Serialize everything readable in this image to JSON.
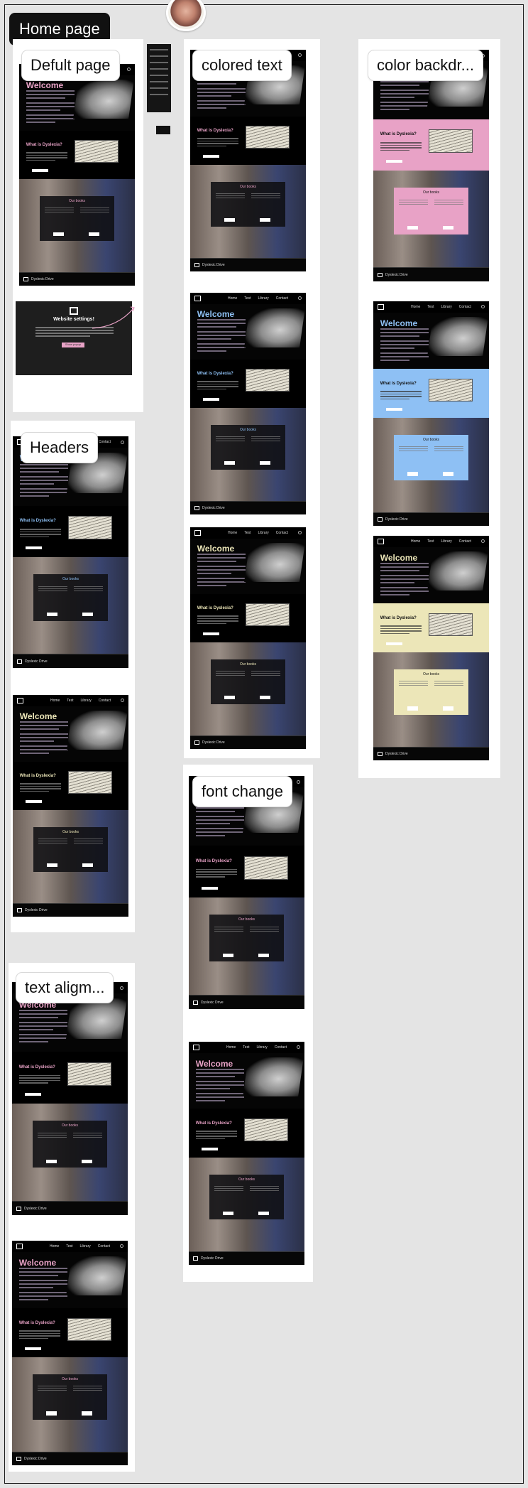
{
  "page": {
    "title": "Home page"
  },
  "sections": [
    {
      "id": "default",
      "label": "Defult page"
    },
    {
      "id": "colored-text",
      "label": "colored text"
    },
    {
      "id": "color-backdrop",
      "label": "color backdr..."
    },
    {
      "id": "headers",
      "label": "Headers"
    },
    {
      "id": "font-change",
      "label": "font change"
    },
    {
      "id": "text-alignment",
      "label": "text aligm..."
    }
  ],
  "mockup": {
    "nav_links": [
      "Home",
      "Test",
      "Library",
      "Contact"
    ],
    "welcome": "Welcome",
    "dyslexia_heading": "What is Dyslexia?",
    "books_heading": "Our books",
    "footer_brand": "Dyslexic Drive"
  },
  "settings_card": {
    "title": "Website settings!",
    "button": "Show popup"
  },
  "colors": {
    "pink": "#e8a2c6",
    "blue": "#8ec0f4",
    "yellow": "#ece6b8",
    "lavender": "#b9a6d9"
  }
}
